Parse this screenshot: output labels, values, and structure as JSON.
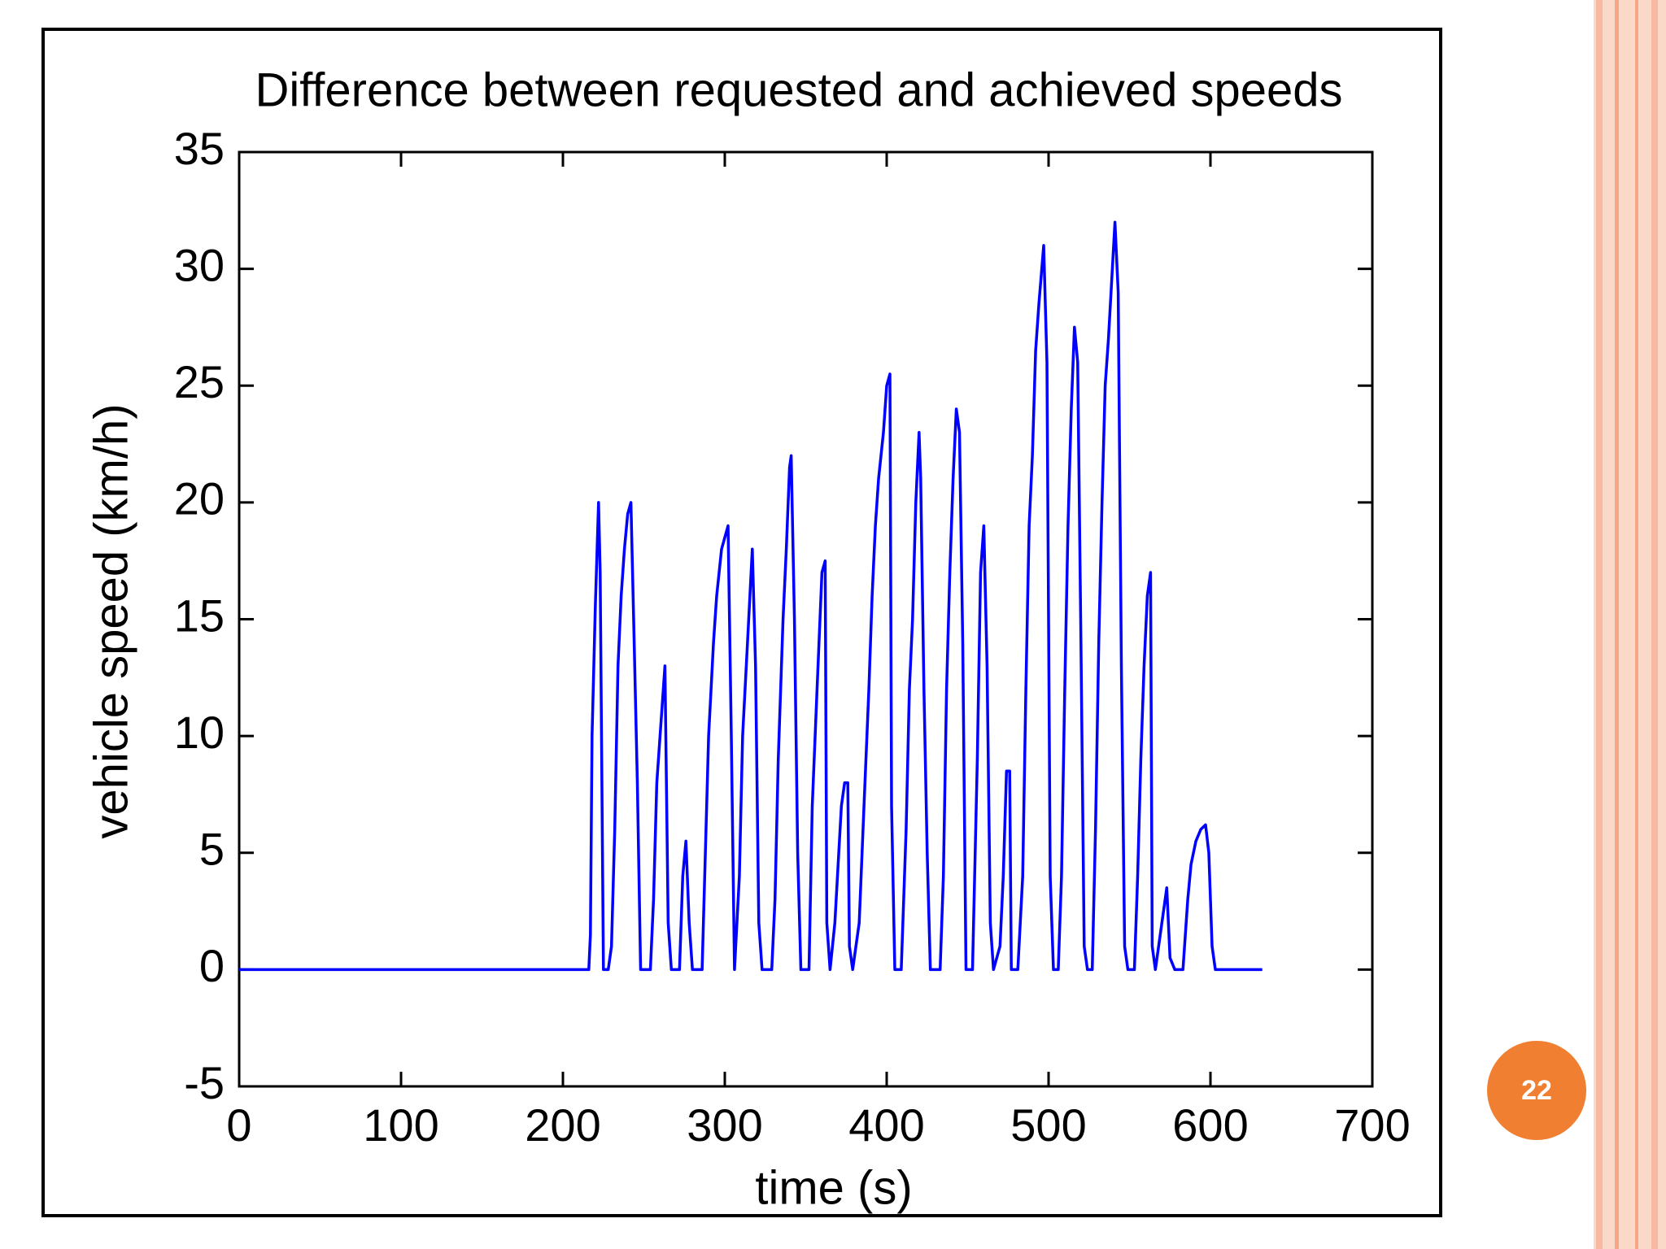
{
  "chart_data": {
    "type": "line",
    "title": "Difference between requested and achieved speeds",
    "x_label": "time (s)",
    "y_label": "vehicle speed (km/h)",
    "color": "#0000ff",
    "xlim": [
      0,
      700
    ],
    "xticks": [
      0,
      100,
      200,
      300,
      400,
      500,
      600,
      700
    ],
    "ylim": [
      -5,
      35
    ],
    "yticks": [
      -5,
      0,
      5,
      10,
      15,
      20,
      25,
      30,
      35
    ],
    "x": [
      0,
      216,
      217,
      218,
      220,
      222,
      223,
      225,
      228,
      230,
      232,
      234,
      236,
      238,
      240,
      242,
      244,
      246,
      248,
      254,
      256,
      258,
      261,
      263,
      265,
      267,
      272,
      274,
      276,
      278,
      280,
      286,
      288,
      290,
      293,
      295,
      298,
      302,
      304,
      306,
      309,
      311,
      314,
      317,
      319,
      321,
      323,
      329,
      331,
      333,
      336,
      338,
      340,
      341,
      343,
      345,
      347,
      352,
      354,
      357,
      360,
      362,
      363,
      365,
      368,
      372,
      374,
      376,
      377,
      379,
      383,
      386,
      389,
      391,
      393,
      395,
      398,
      400,
      402,
      403,
      405,
      409,
      412,
      414,
      416,
      418,
      420,
      421,
      423,
      425,
      427,
      433,
      435,
      437,
      439,
      441,
      443,
      445,
      447,
      449,
      453,
      456,
      458,
      460,
      462,
      464,
      466,
      470,
      472,
      474,
      476,
      477,
      481,
      484,
      486,
      488,
      490,
      492,
      494,
      497,
      499,
      501,
      503,
      506,
      508,
      510,
      512,
      514,
      516,
      518,
      520,
      522,
      524,
      527,
      529,
      531,
      533,
      535,
      537,
      539,
      541,
      543,
      545,
      547,
      549,
      553,
      555,
      557,
      559,
      561,
      563,
      564,
      566,
      570,
      573,
      575,
      578,
      583,
      586,
      588,
      591,
      594,
      597,
      599,
      601,
      603,
      632
    ],
    "values": [
      0,
      0,
      1.5,
      10,
      15.5,
      20,
      17,
      0,
      0,
      1,
      6,
      13,
      16,
      18,
      19.5,
      20,
      14,
      8,
      0,
      0,
      3,
      8,
      11,
      13,
      2,
      0,
      0,
      4,
      5.5,
      2,
      0,
      0,
      5,
      10,
      14,
      16,
      18,
      19,
      10,
      0,
      4,
      10,
      14,
      18,
      13,
      2,
      0,
      0,
      3,
      9,
      15,
      18,
      21.5,
      22,
      15,
      5,
      0,
      0,
      7,
      12,
      17,
      17.5,
      2,
      0,
      2,
      7,
      8,
      8,
      1,
      0,
      2,
      7,
      12,
      16,
      19,
      21,
      23,
      25,
      25.5,
      7,
      0,
      0,
      6,
      12,
      15,
      20,
      23,
      21,
      12,
      5,
      0,
      0,
      4,
      12,
      17,
      21,
      24,
      23,
      14,
      0,
      0,
      9,
      17,
      19,
      13,
      2,
      0,
      1,
      4,
      8.5,
      8.5,
      0,
      0,
      4,
      12,
      19,
      22,
      26.5,
      28.5,
      31,
      26,
      4,
      0,
      0,
      4,
      12,
      19,
      24,
      27.5,
      26,
      14,
      1,
      0,
      0,
      6,
      14,
      20,
      25,
      27,
      29.5,
      32,
      29,
      13,
      1,
      0,
      0,
      4,
      9,
      13,
      16,
      17,
      1,
      0,
      2,
      3.5,
      0.5,
      0,
      0,
      3,
      4.5,
      5.5,
      6,
      6.2,
      5,
      1,
      0,
      0
    ],
    "grid": false
  },
  "slide_number": "22"
}
